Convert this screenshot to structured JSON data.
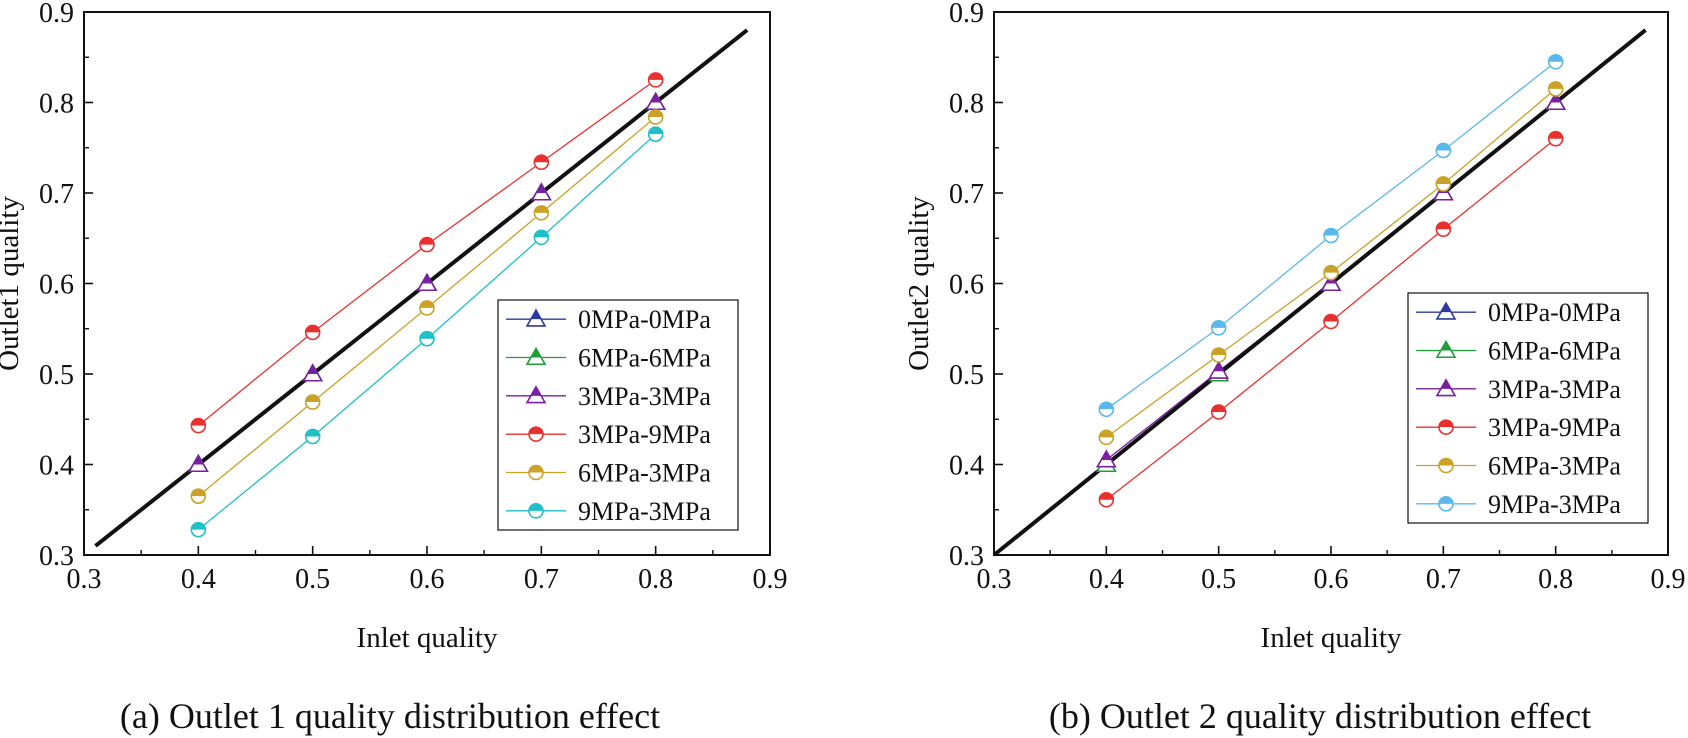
{
  "chart_data": [
    {
      "type": "line",
      "caption": "(a) Outlet 1 quality distribution effect",
      "xlabel": "Inlet quality",
      "ylabel": "Outlet1 quality",
      "xlim": [
        0.3,
        0.9
      ],
      "ylim": [
        0.3,
        0.9
      ],
      "xticks": [
        "0.3",
        "0.4",
        "0.5",
        "0.6",
        "0.7",
        "0.8",
        "0.9"
      ],
      "yticks": [
        "0.3",
        "0.4",
        "0.5",
        "0.6",
        "0.7",
        "0.8",
        "0.9"
      ],
      "reference_line": {
        "x": [
          0.31,
          0.88
        ],
        "y": [
          0.31,
          0.88
        ],
        "color": "#111111"
      },
      "legend_position": "bottom-right",
      "x": [
        0.4,
        0.5,
        0.6,
        0.7,
        0.8
      ],
      "series": [
        {
          "name": "0MPa-0MPa",
          "marker": "triangle",
          "color": "#2b3a9e",
          "values": [
            0.4,
            0.5,
            0.6,
            0.7,
            0.8
          ]
        },
        {
          "name": "6MPa-6MPa",
          "marker": "triangle",
          "color": "#1f9e3a",
          "values": [
            0.4,
            0.5,
            0.6,
            0.7,
            0.8
          ]
        },
        {
          "name": "3MPa-3MPa",
          "marker": "triangle",
          "color": "#7b1fa2",
          "values": [
            0.4,
            0.5,
            0.6,
            0.7,
            0.8
          ]
        },
        {
          "name": "3MPa-9MPa",
          "marker": "circle",
          "color": "#e8312f",
          "values": [
            0.443,
            0.546,
            0.643,
            0.734,
            0.825
          ]
        },
        {
          "name": "6MPa-3MPa",
          "marker": "circle",
          "color": "#c9a227",
          "values": [
            0.365,
            0.469,
            0.573,
            0.678,
            0.784
          ]
        },
        {
          "name": "9MPa-3MPa",
          "marker": "circle",
          "color": "#1fc0c8",
          "values": [
            0.328,
            0.431,
            0.539,
            0.651,
            0.765
          ]
        }
      ]
    },
    {
      "type": "line",
      "caption": "(b) Outlet 2 quality distribution effect",
      "xlabel": "Inlet quality",
      "ylabel": "Outlet2 quality",
      "xlim": [
        0.3,
        0.9
      ],
      "ylim": [
        0.3,
        0.9
      ],
      "xticks": [
        "0.3",
        "0.4",
        "0.5",
        "0.6",
        "0.7",
        "0.8",
        "0.9"
      ],
      "yticks": [
        "0.3",
        "0.4",
        "0.5",
        "0.6",
        "0.7",
        "0.8",
        "0.9"
      ],
      "reference_line": {
        "x": [
          0.3,
          0.88
        ],
        "y": [
          0.3,
          0.88
        ],
        "color": "#111111"
      },
      "legend_position": "bottom-right",
      "x": [
        0.4,
        0.5,
        0.6,
        0.7,
        0.8
      ],
      "series": [
        {
          "name": "0MPa-0MPa",
          "marker": "triangle",
          "color": "#2b3a9e",
          "values": [
            0.4,
            0.5,
            0.6,
            0.7,
            0.8
          ]
        },
        {
          "name": "6MPa-6MPa",
          "marker": "triangle",
          "color": "#1f9e3a",
          "values": [
            0.4,
            0.5,
            0.6,
            0.7,
            0.8
          ]
        },
        {
          "name": "3MPa-3MPa",
          "marker": "triangle",
          "color": "#7b1fa2",
          "values": [
            0.405,
            0.503,
            0.6,
            0.7,
            0.8
          ]
        },
        {
          "name": "3MPa-9MPa",
          "marker": "circle",
          "color": "#e8312f",
          "values": [
            0.361,
            0.458,
            0.558,
            0.66,
            0.76
          ]
        },
        {
          "name": "6MPa-3MPa",
          "marker": "circle",
          "color": "#c9a227",
          "values": [
            0.43,
            0.521,
            0.612,
            0.71,
            0.815
          ]
        },
        {
          "name": "9MPa-3MPa",
          "marker": "circle",
          "color": "#5bb8ea",
          "values": [
            0.461,
            0.551,
            0.653,
            0.747,
            0.845
          ]
        }
      ]
    }
  ]
}
